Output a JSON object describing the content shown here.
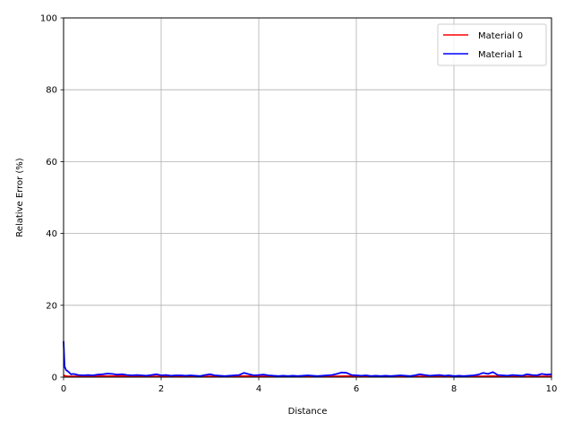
{
  "chart_data": {
    "type": "line",
    "title": "",
    "xlabel": "Distance",
    "ylabel": "Relative Error (%)",
    "xlim": [
      0,
      10
    ],
    "ylim": [
      0,
      100
    ],
    "xticks": [
      "0",
      "2",
      "4",
      "6",
      "8",
      "10"
    ],
    "yticks": [
      "0",
      "20",
      "40",
      "60",
      "80",
      "100"
    ],
    "grid": true,
    "legend_position": "top-right",
    "series": [
      {
        "name": "Material 0",
        "color": "#ff0000",
        "x": [
          0.0,
          0.05,
          0.1,
          0.2,
          0.4,
          0.6,
          0.8,
          1.0,
          1.2,
          1.5,
          2.0,
          2.5,
          3.0,
          3.5,
          3.7,
          4.0,
          4.5,
          5.0,
          5.5,
          5.8,
          6.0,
          6.5,
          7.0,
          7.5,
          8.0,
          8.5,
          8.8,
          9.0,
          9.5,
          10.0
        ],
        "values": [
          0.5,
          0.3,
          0.2,
          0.2,
          0.2,
          0.2,
          0.3,
          0.3,
          0.3,
          0.2,
          0.2,
          0.2,
          0.2,
          0.2,
          0.3,
          0.2,
          0.2,
          0.2,
          0.2,
          0.3,
          0.2,
          0.2,
          0.2,
          0.2,
          0.2,
          0.2,
          0.3,
          0.2,
          0.2,
          0.2
        ]
      },
      {
        "name": "Material 1",
        "color": "#0000ff",
        "x": [
          0.0,
          0.02,
          0.05,
          0.1,
          0.15,
          0.2,
          0.3,
          0.4,
          0.5,
          0.6,
          0.7,
          0.8,
          0.9,
          1.0,
          1.1,
          1.2,
          1.3,
          1.4,
          1.5,
          1.6,
          1.7,
          1.8,
          1.9,
          2.0,
          2.1,
          2.2,
          2.3,
          2.4,
          2.5,
          2.6,
          2.7,
          2.8,
          2.9,
          3.0,
          3.1,
          3.2,
          3.3,
          3.4,
          3.5,
          3.6,
          3.7,
          3.8,
          3.9,
          4.0,
          4.1,
          4.2,
          4.3,
          4.4,
          4.5,
          4.6,
          4.7,
          4.8,
          4.9,
          5.0,
          5.1,
          5.2,
          5.3,
          5.4,
          5.5,
          5.6,
          5.7,
          5.8,
          5.9,
          6.0,
          6.1,
          6.2,
          6.3,
          6.4,
          6.5,
          6.6,
          6.7,
          6.8,
          6.9,
          7.0,
          7.1,
          7.2,
          7.3,
          7.4,
          7.5,
          7.6,
          7.7,
          7.8,
          7.9,
          8.0,
          8.1,
          8.2,
          8.3,
          8.4,
          8.5,
          8.6,
          8.7,
          8.8,
          8.9,
          9.0,
          9.1,
          9.2,
          9.3,
          9.4,
          9.5,
          9.6,
          9.7,
          9.8,
          9.9,
          10.0
        ],
        "values": [
          10.0,
          3.0,
          2.0,
          1.5,
          0.8,
          0.9,
          0.6,
          0.5,
          0.6,
          0.5,
          0.7,
          0.8,
          1.0,
          0.9,
          0.7,
          0.8,
          0.6,
          0.5,
          0.6,
          0.5,
          0.4,
          0.6,
          0.8,
          0.5,
          0.6,
          0.4,
          0.5,
          0.5,
          0.4,
          0.5,
          0.4,
          0.3,
          0.6,
          0.8,
          0.5,
          0.4,
          0.3,
          0.4,
          0.5,
          0.6,
          1.2,
          0.8,
          0.5,
          0.6,
          0.7,
          0.5,
          0.4,
          0.3,
          0.4,
          0.3,
          0.4,
          0.3,
          0.4,
          0.5,
          0.4,
          0.3,
          0.4,
          0.5,
          0.6,
          0.9,
          1.3,
          1.2,
          0.6,
          0.5,
          0.4,
          0.5,
          0.3,
          0.4,
          0.3,
          0.4,
          0.3,
          0.4,
          0.5,
          0.4,
          0.3,
          0.5,
          0.8,
          0.6,
          0.4,
          0.5,
          0.6,
          0.4,
          0.5,
          0.3,
          0.4,
          0.3,
          0.4,
          0.5,
          0.7,
          1.2,
          0.9,
          1.4,
          0.6,
          0.5,
          0.4,
          0.6,
          0.5,
          0.4,
          0.8,
          0.6,
          0.5,
          0.9,
          0.7,
          0.8
        ]
      }
    ]
  }
}
